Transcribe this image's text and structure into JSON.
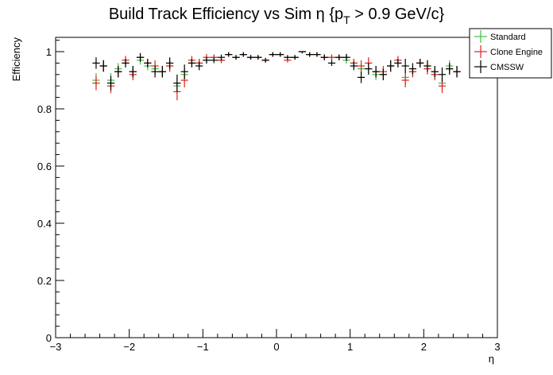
{
  "chart_data": {
    "type": "scatter",
    "title": "Build Track Efficiency vs Sim η {p",
    "title_sub": "T",
    "title_tail": " > 0.9 GeV/c}",
    "xlabel": "η",
    "ylabel": "Efficiency",
    "xlim": [
      -3,
      3
    ],
    "ylim": [
      0,
      1.05
    ],
    "x_ticks": [
      -3,
      -2,
      -1,
      0,
      1,
      2,
      3
    ],
    "x_tick_labels": [
      "−3",
      "−2",
      "−1",
      "0",
      "1",
      "2",
      "3"
    ],
    "y_ticks": [
      0,
      0.2,
      0.4,
      0.6,
      0.8,
      1
    ],
    "y_tick_labels": [
      "0",
      "0.2",
      "0.4",
      "0.6",
      "0.8",
      "1"
    ],
    "grid": false,
    "legend_position": "top-right",
    "bin_half_width": 0.05,
    "x": [
      -2.45,
      -2.35,
      -2.25,
      -2.15,
      -2.05,
      -1.95,
      -1.85,
      -1.75,
      -1.65,
      -1.55,
      -1.45,
      -1.35,
      -1.25,
      -1.15,
      -1.05,
      -0.95,
      -0.85,
      -0.75,
      -0.65,
      -0.55,
      -0.45,
      -0.35,
      -0.25,
      -0.15,
      -0.05,
      0.05,
      0.15,
      0.25,
      0.35,
      0.45,
      0.55,
      0.65,
      0.75,
      0.85,
      0.95,
      1.05,
      1.15,
      1.25,
      1.35,
      1.45,
      1.55,
      1.65,
      1.75,
      1.85,
      1.95,
      2.05,
      2.15,
      2.25,
      2.35,
      2.45
    ],
    "series": [
      {
        "name": "Standard",
        "color": "#3fbf3f",
        "values": [
          0.9,
          0.95,
          0.9,
          0.94,
          0.96,
          0.93,
          0.97,
          0.95,
          0.94,
          0.93,
          0.95,
          0.88,
          0.92,
          0.96,
          0.96,
          0.97,
          0.98,
          0.97,
          0.99,
          0.98,
          0.99,
          0.98,
          0.98,
          0.97,
          0.99,
          0.99,
          0.98,
          0.98,
          1.0,
          0.99,
          0.99,
          0.98,
          0.98,
          0.98,
          0.97,
          0.96,
          0.94,
          0.94,
          0.92,
          0.92,
          0.95,
          0.96,
          0.91,
          0.93,
          0.96,
          0.95,
          0.93,
          0.89,
          0.95,
          0.93
        ],
        "errors": [
          0.025,
          0.02,
          0.025,
          0.02,
          0.015,
          0.02,
          0.015,
          0.015,
          0.02,
          0.02,
          0.02,
          0.03,
          0.025,
          0.015,
          0.015,
          0.012,
          0.01,
          0.01,
          0.008,
          0.008,
          0.008,
          0.008,
          0.008,
          0.008,
          0.008,
          0.008,
          0.008,
          0.008,
          0.006,
          0.008,
          0.008,
          0.01,
          0.01,
          0.01,
          0.012,
          0.015,
          0.02,
          0.02,
          0.02,
          0.02,
          0.02,
          0.015,
          0.025,
          0.02,
          0.015,
          0.02,
          0.02,
          0.025,
          0.02,
          0.02
        ]
      },
      {
        "name": "Clone Engine",
        "color": "#e02020",
        "values": [
          0.89,
          0.95,
          0.88,
          0.93,
          0.97,
          0.92,
          0.98,
          0.96,
          0.95,
          0.93,
          0.95,
          0.86,
          0.9,
          0.97,
          0.96,
          0.98,
          0.98,
          0.97,
          0.99,
          0.98,
          0.99,
          0.98,
          0.98,
          0.97,
          0.99,
          0.99,
          0.97,
          0.98,
          1.0,
          0.99,
          0.99,
          0.98,
          0.98,
          0.98,
          0.98,
          0.96,
          0.95,
          0.96,
          0.93,
          0.93,
          0.95,
          0.97,
          0.9,
          0.93,
          0.96,
          0.94,
          0.92,
          0.88,
          0.94,
          0.93
        ],
        "errors": [
          0.025,
          0.02,
          0.025,
          0.02,
          0.015,
          0.02,
          0.015,
          0.015,
          0.02,
          0.02,
          0.02,
          0.03,
          0.025,
          0.015,
          0.015,
          0.012,
          0.01,
          0.01,
          0.008,
          0.008,
          0.008,
          0.008,
          0.008,
          0.008,
          0.008,
          0.008,
          0.008,
          0.008,
          0.006,
          0.008,
          0.008,
          0.01,
          0.01,
          0.01,
          0.012,
          0.015,
          0.02,
          0.02,
          0.02,
          0.02,
          0.02,
          0.015,
          0.025,
          0.02,
          0.015,
          0.02,
          0.02,
          0.025,
          0.02,
          0.02
        ]
      },
      {
        "name": "CMSSW",
        "color": "#000000",
        "values": [
          0.96,
          0.95,
          0.89,
          0.93,
          0.96,
          0.93,
          0.98,
          0.96,
          0.93,
          0.93,
          0.96,
          0.89,
          0.93,
          0.96,
          0.95,
          0.97,
          0.97,
          0.98,
          0.99,
          0.98,
          0.99,
          0.98,
          0.98,
          0.97,
          0.99,
          0.99,
          0.98,
          0.98,
          1.0,
          0.99,
          0.99,
          0.98,
          0.96,
          0.98,
          0.98,
          0.95,
          0.91,
          0.94,
          0.93,
          0.92,
          0.95,
          0.96,
          0.95,
          0.94,
          0.96,
          0.95,
          0.93,
          0.92,
          0.94,
          0.93
        ],
        "errors": [
          0.02,
          0.02,
          0.025,
          0.02,
          0.015,
          0.02,
          0.015,
          0.015,
          0.02,
          0.02,
          0.02,
          0.03,
          0.025,
          0.015,
          0.015,
          0.012,
          0.01,
          0.01,
          0.008,
          0.008,
          0.008,
          0.008,
          0.008,
          0.008,
          0.008,
          0.008,
          0.008,
          0.008,
          0.006,
          0.008,
          0.008,
          0.01,
          0.01,
          0.01,
          0.012,
          0.015,
          0.02,
          0.02,
          0.02,
          0.02,
          0.02,
          0.015,
          0.025,
          0.02,
          0.015,
          0.02,
          0.02,
          0.025,
          0.02,
          0.02
        ]
      }
    ]
  }
}
